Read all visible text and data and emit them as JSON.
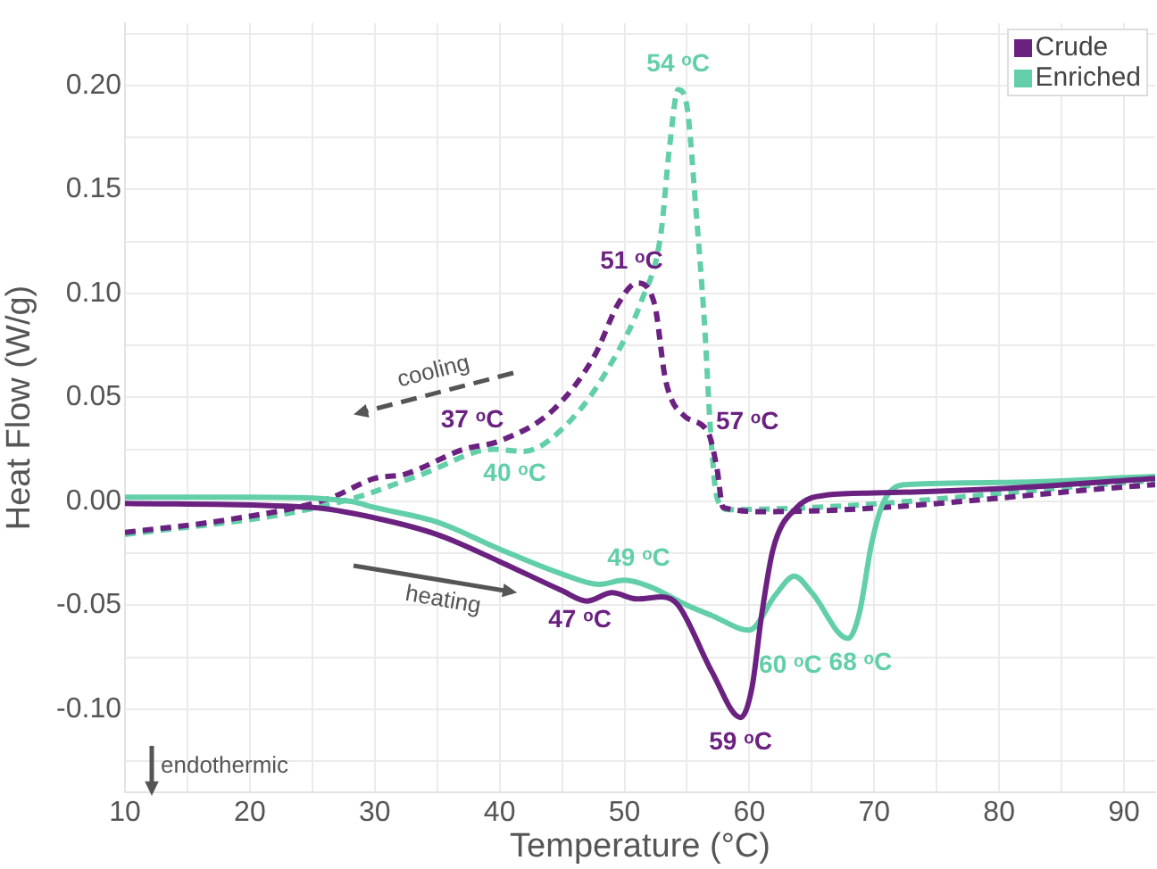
{
  "chart_data": {
    "type": "line",
    "xlabel": "Temperature (°C)",
    "ylabel": "Heat Flow (W/g)",
    "xlim": [
      10,
      92.5
    ],
    "ylim": [
      -0.14,
      0.23
    ],
    "xticks": [
      10,
      {
        "value": 15,
        "label": null
      },
      20,
      {
        "value": 25,
        "label": null
      },
      30,
      {
        "value": 35,
        "label": null
      },
      40,
      {
        "value": 45,
        "label": null
      },
      50,
      {
        "value": 55,
        "label": null
      },
      60,
      {
        "value": 65,
        "label": null
      },
      70,
      {
        "value": 75,
        "label": null
      },
      80,
      {
        "value": 85,
        "label": null
      },
      90
    ],
    "yticks": [
      {
        "value": -0.125,
        "label": null
      },
      {
        "value": -0.1,
        "label": "-0.10"
      },
      {
        "value": -0.075,
        "label": null
      },
      {
        "value": -0.05,
        "label": "-0.05"
      },
      {
        "value": -0.025,
        "label": null
      },
      {
        "value": 0,
        "label": "0.00"
      },
      {
        "value": 0.025,
        "label": null
      },
      {
        "value": 0.05,
        "label": "0.05"
      },
      {
        "value": 0.075,
        "label": null
      },
      {
        "value": 0.1,
        "label": "0.10"
      },
      {
        "value": 0.125,
        "label": null
      },
      {
        "value": 0.15,
        "label": "0.15"
      },
      {
        "value": 0.175,
        "label": null
      },
      {
        "value": 0.2,
        "label": "0.20"
      },
      {
        "value": 0.225,
        "label": null
      }
    ],
    "grid": true,
    "legend": "top right",
    "marker": "none",
    "annotations": [
      "cooling",
      "heating",
      "endothermic",
      {
        "text": "54 ᵒC",
        "x": 54.3,
        "y": 0.198
      },
      {
        "text": "51 ᵒC",
        "x": 51,
        "y": 0.105
      },
      {
        "text": "57 ᵒC",
        "x": 56.7,
        "y": 0.033
      },
      {
        "text": "37 ᵒC",
        "x": 37.1,
        "y": 0.025
      },
      {
        "text": "40 ᵒC",
        "x": 39.5,
        "y": 0.025
      },
      {
        "text": "49 ᵒC",
        "x": 50,
        "y": -0.038
      },
      {
        "text": "47 ᵒC",
        "x": 47,
        "y": -0.048
      },
      {
        "text": "60 ᵒC",
        "x": 60,
        "y": -0.062
      },
      {
        "text": "59 ᵒC",
        "x": 59.3,
        "y": -0.104
      },
      {
        "text": "68 ᵒC",
        "x": 67.9,
        "y": -0.066
      }
    ],
    "series": [
      {
        "name": "Crude",
        "color": "#6b2180",
        "line_style": "solid",
        "x": [
          10,
          25,
          30,
          35,
          40,
          45,
          47,
          49,
          51,
          53,
          54.3,
          57,
          59.3,
          60.2,
          61,
          61.9,
          63.8,
          66.2,
          70,
          80,
          92.5
        ],
        "values": [
          -0.001,
          -0.003,
          -0.008,
          -0.016,
          -0.029,
          -0.043,
          -0.048,
          -0.044,
          -0.047,
          -0.046,
          -0.05,
          -0.082,
          -0.104,
          -0.09,
          -0.054,
          -0.023,
          -0.003,
          0.003,
          0.004,
          0.006,
          0.011
        ]
      },
      {
        "name": "Enriched",
        "color": "#62cfa8",
        "line_style": "solid",
        "x": [
          10,
          20,
          28,
          30,
          35,
          40,
          45,
          48,
          50,
          52,
          55,
          57,
          60,
          62.1,
          63.6,
          65,
          67.9,
          68.8,
          69.8,
          70.7,
          72.4,
          80,
          92.5
        ],
        "values": [
          0.002,
          0.002,
          0,
          -0.003,
          -0.01,
          -0.023,
          -0.035,
          -0.04,
          -0.038,
          -0.041,
          -0.05,
          -0.055,
          -0.062,
          -0.045,
          -0.036,
          -0.044,
          -0.066,
          -0.054,
          -0.02,
          -0.001,
          0.008,
          0.009,
          0.012
        ]
      },
      {
        "color": "#6b2180",
        "line_style": "dashed",
        "x": [
          10,
          18.1,
          26.2,
          30,
          32.4,
          37.1,
          40,
          44.3,
          47.6,
          49.5,
          51,
          52.4,
          53.3,
          54.8,
          56.7,
          57.4,
          57.9,
          61.4,
          92.5
        ],
        "values": [
          -0.015,
          -0.009,
          0.001,
          0.011,
          0.013,
          0.025,
          0.029,
          0.044,
          0.07,
          0.095,
          0.105,
          0.095,
          0.058,
          0.041,
          0.033,
          0.016,
          -0.003,
          -0.005,
          0.008
        ]
      },
      {
        "color": "#62cfa8",
        "line_style": "dashed",
        "x": [
          10,
          22.9,
          28.6,
          33.8,
          39.5,
          41.9,
          45.7,
          49,
          51.4,
          52.9,
          53.6,
          54.3,
          55,
          55.7,
          56.4,
          56.9,
          57.4,
          58.3,
          92.5
        ],
        "values": [
          -0.016,
          -0.006,
          0.002,
          0.013,
          0.025,
          0.024,
          0.039,
          0.067,
          0.097,
          0.128,
          0.17,
          0.198,
          0.19,
          0.142,
          0.086,
          0.033,
          0.002,
          -0.004,
          0.01
        ]
      }
    ]
  }
}
